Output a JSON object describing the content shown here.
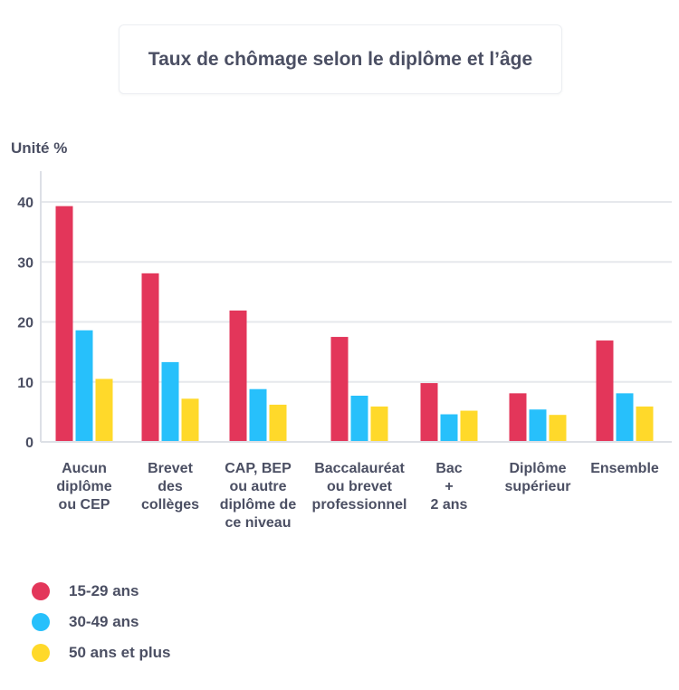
{
  "chart_data": {
    "type": "bar",
    "title": "Taux de chômage selon le diplôme et l’âge",
    "unit_label": "Unité %",
    "ylim": [
      0,
      40
    ],
    "yticks": [
      0,
      10,
      20,
      30,
      40
    ],
    "grid": true,
    "legend_position": "bottom-left",
    "categories": [
      [
        "Aucun",
        "diplôme",
        "ou CEP"
      ],
      [
        "Brevet",
        "des",
        "collèges"
      ],
      [
        "CAP, BEP",
        "ou autre",
        "diplôme de",
        "ce niveau"
      ],
      [
        "Baccalauréat",
        "ou brevet",
        "professionnel"
      ],
      [
        "Bac",
        "+",
        "2 ans"
      ],
      [
        "Diplôme",
        "supérieur"
      ],
      [
        "Ensemble"
      ]
    ],
    "series": [
      {
        "name": "15-29 ans",
        "color": "#e3365a",
        "values": [
          39.3,
          28.1,
          21.9,
          17.5,
          9.8,
          8.1,
          16.9
        ]
      },
      {
        "name": "30-49 ans",
        "color": "#27c0fb",
        "values": [
          18.6,
          13.3,
          8.8,
          7.7,
          4.6,
          5.4,
          8.1
        ]
      },
      {
        "name": "50 ans et plus",
        "color": "#ffd92a",
        "values": [
          10.5,
          7.2,
          6.2,
          5.9,
          5.2,
          4.5,
          5.9
        ]
      }
    ]
  }
}
